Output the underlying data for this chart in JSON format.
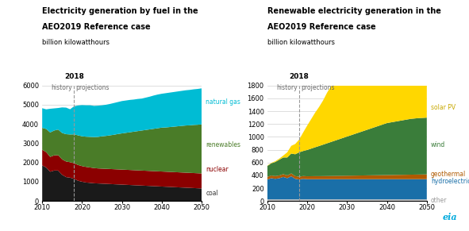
{
  "left_title_line1": "Electricity generation by fuel in the",
  "left_title_line2": "AEO2019 Reference case",
  "right_title_line1": "Renewable electricity generation in the",
  "right_title_line2": "AEO2019 Reference case",
  "subtitle": "billion kilowatthours",
  "divider_year": 2018,
  "years": [
    2010,
    2011,
    2012,
    2013,
    2014,
    2015,
    2016,
    2017,
    2018,
    2019,
    2020,
    2021,
    2022,
    2023,
    2024,
    2025,
    2026,
    2027,
    2028,
    2029,
    2030,
    2031,
    2032,
    2033,
    2034,
    2035,
    2036,
    2037,
    2038,
    2039,
    2040,
    2041,
    2042,
    2043,
    2044,
    2045,
    2046,
    2047,
    2048,
    2049,
    2050
  ],
  "left": {
    "coal": [
      1850,
      1740,
      1520,
      1580,
      1580,
      1360,
      1240,
      1210,
      1150,
      1050,
      1000,
      960,
      940,
      920,
      910,
      900,
      890,
      880,
      870,
      860,
      850,
      840,
      830,
      820,
      810,
      800,
      790,
      780,
      770,
      760,
      750,
      740,
      730,
      720,
      710,
      700,
      690,
      680,
      670,
      660,
      650
    ],
    "nuclear": [
      810,
      800,
      770,
      790,
      800,
      800,
      810,
      805,
      810,
      820,
      810,
      810,
      800,
      790,
      780,
      780,
      780,
      780,
      780,
      780,
      780,
      780,
      780,
      780,
      780,
      780,
      780,
      780,
      780,
      780,
      780,
      780,
      780,
      780,
      780,
      780,
      780,
      780,
      780,
      780,
      780
    ],
    "renewables": [
      1140,
      1200,
      1270,
      1290,
      1330,
      1370,
      1420,
      1440,
      1500,
      1540,
      1550,
      1570,
      1590,
      1610,
      1640,
      1680,
      1710,
      1750,
      1790,
      1840,
      1880,
      1920,
      1960,
      2000,
      2040,
      2080,
      2120,
      2160,
      2200,
      2240,
      2280,
      2300,
      2330,
      2360,
      2390,
      2420,
      2450,
      2470,
      2500,
      2520,
      2550
    ],
    "natural_gas": [
      1020,
      1020,
      1230,
      1150,
      1120,
      1330,
      1380,
      1310,
      1460,
      1550,
      1620,
      1630,
      1640,
      1620,
      1620,
      1610,
      1620,
      1630,
      1650,
      1660,
      1680,
      1680,
      1680,
      1670,
      1670,
      1660,
      1680,
      1700,
      1730,
      1750,
      1760,
      1780,
      1790,
      1800,
      1810,
      1820,
      1830,
      1840,
      1850,
      1860,
      1870
    ]
  },
  "left_ylim": [
    0,
    6000
  ],
  "left_yticks": [
    0,
    1000,
    2000,
    3000,
    4000,
    5000,
    6000
  ],
  "left_colors": {
    "coal": "#1a1a1a",
    "nuclear": "#8b0000",
    "renewables": "#4a7c28",
    "natural_gas": "#00bcd4"
  },
  "right": {
    "other": [
      25,
      25,
      25,
      25,
      25,
      25,
      25,
      25,
      25,
      25,
      25,
      25,
      25,
      25,
      25,
      25,
      25,
      25,
      25,
      25,
      25,
      25,
      25,
      25,
      25,
      25,
      25,
      25,
      25,
      25,
      25,
      25,
      25,
      25,
      25,
      25,
      25,
      25,
      25,
      25,
      25
    ],
    "hydroelectric": [
      310,
      330,
      320,
      330,
      350,
      330,
      360,
      320,
      310,
      320,
      315,
      315,
      315,
      315,
      315,
      315,
      315,
      315,
      315,
      315,
      315,
      315,
      315,
      315,
      315,
      315,
      315,
      315,
      315,
      315,
      315,
      315,
      315,
      315,
      315,
      315,
      315,
      315,
      315,
      315,
      315
    ],
    "geothermal": [
      40,
      42,
      43,
      43,
      43,
      43,
      44,
      43,
      43,
      44,
      45,
      46,
      47,
      47,
      48,
      49,
      50,
      51,
      52,
      53,
      54,
      55,
      56,
      57,
      58,
      59,
      60,
      61,
      62,
      63,
      64,
      65,
      66,
      67,
      68,
      69,
      70,
      71,
      72,
      73,
      74
    ],
    "wind": [
      170,
      190,
      220,
      245,
      260,
      280,
      310,
      340,
      380,
      390,
      410,
      430,
      450,
      470,
      490,
      510,
      530,
      550,
      570,
      590,
      610,
      630,
      650,
      670,
      690,
      710,
      730,
      750,
      770,
      790,
      810,
      820,
      830,
      840,
      850,
      860,
      870,
      875,
      880,
      882,
      885
    ],
    "solar_pv": [
      5,
      7,
      12,
      17,
      30,
      80,
      120,
      160,
      200,
      290,
      380,
      460,
      540,
      610,
      690,
      790,
      870,
      960,
      1050,
      1140,
      1200,
      1240,
      1280,
      1310,
      1340,
      1370,
      1380,
      1400,
      1420,
      1440,
      1450,
      1455,
      1460,
      1465,
      1470,
      1475,
      1480,
      1485,
      1490,
      1495,
      1500
    ]
  },
  "right_ylim": [
    0,
    1800
  ],
  "right_yticks": [
    0,
    200,
    400,
    600,
    800,
    1000,
    1200,
    1400,
    1600,
    1800
  ],
  "right_colors": {
    "other": "#c8c8c8",
    "hydroelectric": "#1a6fa8",
    "geothermal": "#b05a00",
    "wind": "#3a7d3a",
    "solar_pv": "#ffd700"
  },
  "label_colors": {
    "natural_gas": "#00bcd4",
    "renewables": "#4a7c28",
    "nuclear": "#8b0000",
    "coal": "#333333",
    "solar_pv": "#c8a800",
    "wind": "#3a7d3a",
    "geothermal": "#b05a00",
    "hydroelectric": "#1a6fa8",
    "other": "#999999"
  },
  "grid_color": "#d0d0d0",
  "divider_color": "#999999",
  "history_proj_color": "#666666"
}
